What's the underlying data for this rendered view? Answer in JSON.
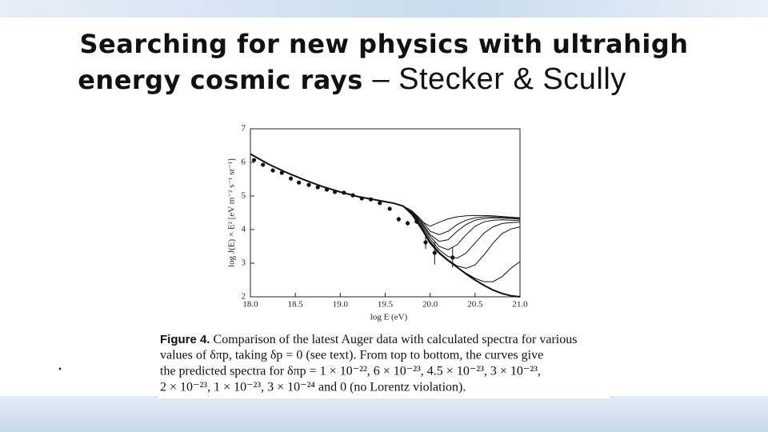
{
  "slide": {
    "title_line1": "Searching for new physics with ultrahigh",
    "title_line2": "energy cosmic rays",
    "authors": "– Stecker & Scully"
  },
  "chart_data": {
    "type": "line",
    "xlabel": "log E (eV)",
    "ylabel": "log J(E) × E² [eV m⁻² s⁻¹ sr⁻¹]",
    "xlim": [
      18.0,
      21.0
    ],
    "xticks": [
      {
        "value": 18.0,
        "label": "18.0"
      },
      18.5,
      {
        "value": 19.0,
        "label": "19.0"
      },
      19.5,
      {
        "value": 20.0,
        "label": "20.0"
      },
      20.5,
      {
        "value": 21.0,
        "label": "21.0"
      }
    ],
    "ylim": [
      2,
      7
    ],
    "yticks": [
      2,
      3,
      4,
      5,
      6,
      7
    ],
    "x": [
      18.0,
      18.2,
      18.4,
      18.6,
      18.8,
      19.0,
      19.2,
      19.4,
      19.6,
      19.7,
      19.8,
      19.9,
      20.0,
      20.1,
      20.2,
      20.3,
      20.4,
      20.5,
      20.6,
      20.7,
      20.8,
      20.9,
      21.0
    ],
    "series": [
      {
        "color": "#111111",
        "values": [
          6.25,
          5.95,
          5.7,
          5.48,
          5.28,
          5.12,
          4.98,
          4.88,
          4.78,
          4.7,
          4.5,
          4.25,
          4.1,
          4.22,
          4.32,
          4.38,
          4.41,
          4.42,
          4.42,
          4.41,
          4.39,
          4.37,
          4.35
        ]
      },
      {
        "color": "#111111",
        "values": [
          6.25,
          5.95,
          5.7,
          5.48,
          5.28,
          5.12,
          4.98,
          4.88,
          4.78,
          4.7,
          4.55,
          4.3,
          3.95,
          3.85,
          3.95,
          4.15,
          4.28,
          4.35,
          4.38,
          4.38,
          4.37,
          4.35,
          4.33
        ]
      },
      {
        "color": "#111111",
        "values": [
          6.25,
          5.95,
          5.7,
          5.48,
          5.28,
          5.12,
          4.98,
          4.88,
          4.78,
          4.7,
          4.55,
          4.25,
          3.85,
          3.65,
          3.7,
          3.95,
          4.15,
          4.28,
          4.33,
          4.35,
          4.34,
          4.33,
          4.31
        ]
      },
      {
        "color": "#111111",
        "values": [
          6.25,
          5.95,
          5.7,
          5.48,
          5.28,
          5.12,
          4.98,
          4.88,
          4.78,
          4.7,
          4.52,
          4.2,
          3.8,
          3.5,
          3.4,
          3.55,
          3.85,
          4.1,
          4.23,
          4.28,
          4.29,
          4.28,
          4.27
        ]
      },
      {
        "color": "#111111",
        "values": [
          6.25,
          5.95,
          5.7,
          5.48,
          5.28,
          5.12,
          4.98,
          4.88,
          4.78,
          4.7,
          4.5,
          4.15,
          3.72,
          3.4,
          3.2,
          3.15,
          3.3,
          3.6,
          3.9,
          4.08,
          4.18,
          4.21,
          4.22
        ]
      },
      {
        "color": "#111111",
        "values": [
          6.25,
          5.95,
          5.7,
          5.48,
          5.28,
          5.12,
          4.98,
          4.88,
          4.78,
          4.7,
          4.48,
          4.1,
          3.65,
          3.33,
          3.1,
          2.92,
          2.85,
          2.95,
          3.25,
          3.6,
          3.88,
          4.02,
          4.08
        ]
      },
      {
        "color": "#111111",
        "values": [
          6.25,
          5.95,
          5.7,
          5.48,
          5.28,
          5.12,
          4.98,
          4.88,
          4.78,
          4.7,
          4.46,
          4.07,
          3.62,
          3.3,
          3.08,
          2.88,
          2.7,
          2.55,
          2.45,
          2.45,
          2.6,
          2.85,
          3.05
        ]
      },
      {
        "color": "#111111",
        "values": [
          6.25,
          5.95,
          5.7,
          5.48,
          5.28,
          5.12,
          4.98,
          4.88,
          4.78,
          4.7,
          4.45,
          4.05,
          3.6,
          3.3,
          3.08,
          2.88,
          2.68,
          2.5,
          2.34,
          2.2,
          2.1,
          2.03,
          2.0
        ]
      }
    ],
    "points": {
      "color": "#111111",
      "x": [
        18.04,
        18.14,
        18.25,
        18.35,
        18.45,
        18.54,
        18.65,
        18.75,
        18.85,
        18.94,
        19.04,
        19.14,
        19.24,
        19.34,
        19.44,
        19.55,
        19.65,
        19.75,
        19.85,
        19.95,
        20.05,
        20.25
      ],
      "values": [
        6.07,
        5.93,
        5.76,
        5.69,
        5.52,
        5.4,
        5.33,
        5.26,
        5.19,
        5.12,
        5.1,
        5.02,
        4.93,
        4.9,
        4.79,
        4.62,
        4.31,
        4.19,
        4.24,
        3.62,
        3.31,
        3.17
      ],
      "errors": [
        0.03,
        0.03,
        0.03,
        0.03,
        0.03,
        0.03,
        0.03,
        0.03,
        0.03,
        0.03,
        0.03,
        0.03,
        0.03,
        0.03,
        0.03,
        0.05,
        0.07,
        0.07,
        0.07,
        0.2,
        0.35,
        0.3
      ]
    }
  },
  "caption": {
    "label": "Figure 4.",
    "lines": [
      "Comparison of the latest Auger data with calculated spectra for various",
      "values of δπp, taking δp = 0 (see text). From top to bottom, the curves give",
      "the predicted spectra for δπp = 1 × 10⁻²², 6 × 10⁻²³, 4.5 × 10⁻²³, 3 × 10⁻²³,",
      "2 × 10⁻²³, 1 × 10⁻²³, 3 × 10⁻²⁴ and 0 (no Lorentz violation)."
    ]
  }
}
